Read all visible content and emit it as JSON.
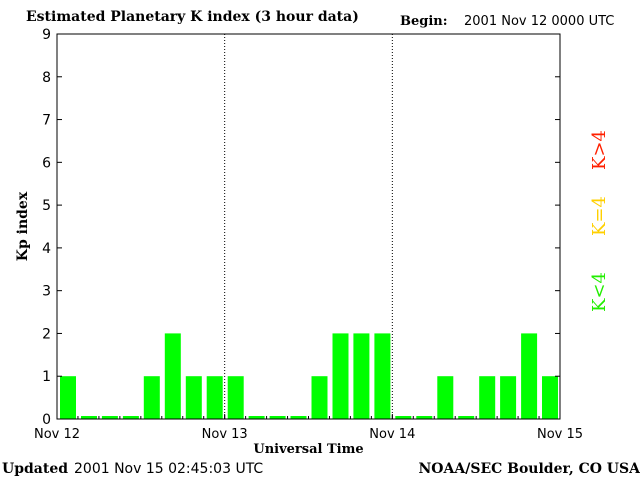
{
  "header": {
    "title": "Estimated Planetary K index (3 hour data)",
    "begin_label": "Begin:",
    "begin_value": "2001 Nov 12 0000 UTC"
  },
  "footer": {
    "updated_label": "Updated",
    "updated_value": "2001 Nov 15 02:45:03 UTC",
    "credit": "NOAA/SEC Boulder, CO USA"
  },
  "legend": [
    {
      "label": "K>4",
      "color": "#ff2000"
    },
    {
      "label": "K=4",
      "color": "#ffd000"
    },
    {
      "label": "K<4",
      "color": "#22ee00"
    }
  ],
  "chart_data": {
    "type": "bar",
    "title": "Estimated Planetary K index (3 hour data)",
    "xlabel": "Universal Time",
    "ylabel": "Kp index",
    "ylim": [
      0,
      9
    ],
    "yticks": [
      0,
      1,
      2,
      3,
      4,
      5,
      6,
      7,
      8,
      9
    ],
    "xticks": [
      "Nov 12",
      "Nov 13",
      "Nov 14",
      "Nov 15"
    ],
    "bars_per_day": 8,
    "bar_color": "#00ff00",
    "values": [
      1,
      0,
      0,
      0,
      1,
      2,
      1,
      1,
      1,
      0,
      0,
      0,
      1,
      2,
      2,
      2,
      0,
      0,
      1,
      0,
      1,
      1,
      2,
      1
    ],
    "day_dividers": "dotted"
  }
}
